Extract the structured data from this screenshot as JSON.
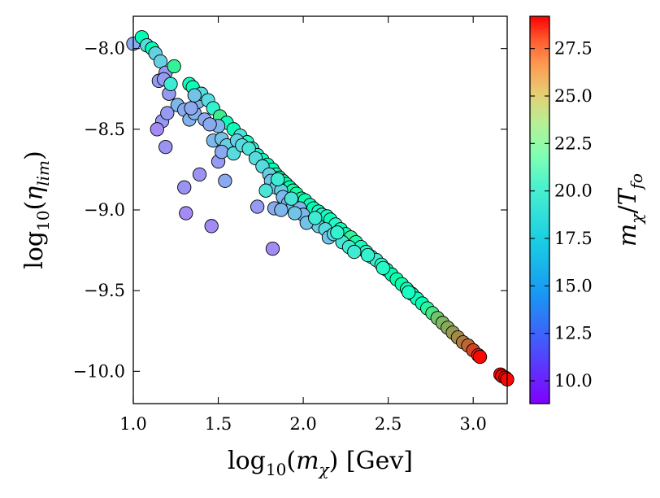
{
  "chart_data": {
    "type": "scatter",
    "title": "",
    "xlabel": {
      "pre": "log",
      "sub": "10",
      "open": "(",
      "var": "m",
      "varsub": "χ",
      "close": ")",
      "post": " [Gev]"
    },
    "ylabel": {
      "pre": "log",
      "sub": "10",
      "open": "(",
      "var": "η",
      "varsub": "lim",
      "close": ")"
    },
    "colorbar_label": {
      "var": "m",
      "varsub": "χ",
      "slash": "/",
      "var2": "T",
      "var2sub": "fo"
    },
    "xlim": [
      1.0,
      3.2
    ],
    "ylim": [
      -10.2,
      -7.8
    ],
    "xticks": [
      1.0,
      1.5,
      2.0,
      2.5,
      3.0
    ],
    "xtick_labels": [
      "1.0",
      "1.5",
      "2.0",
      "2.5",
      "3.0"
    ],
    "yticks": [
      -8.0,
      -8.5,
      -9.0,
      -9.5,
      -10.0
    ],
    "ytick_labels": [
      "−8.0",
      "−8.5",
      "−9.0",
      "−9.5",
      "−10.0"
    ],
    "clim": [
      8.8,
      29.2
    ],
    "cticks": [
      10.0,
      12.5,
      15.0,
      17.5,
      20.0,
      22.5,
      25.0,
      27.5
    ],
    "ctick_labels": [
      "10.0",
      "12.5",
      "15.0",
      "17.5",
      "20.0",
      "22.5",
      "25.0",
      "27.5"
    ],
    "colormap": "rainbow",
    "grid": false,
    "points": [
      [
        1.0,
        -7.97,
        13.5
      ],
      [
        1.05,
        -7.93,
        19.0
      ],
      [
        1.08,
        -7.98,
        15.5
      ],
      [
        1.11,
        -8.0,
        19.0
      ],
      [
        1.13,
        -8.03,
        15.0
      ],
      [
        1.16,
        -8.08,
        15.0
      ],
      [
        1.19,
        -8.15,
        13.0
      ],
      [
        1.24,
        -8.11,
        21.0
      ],
      [
        1.15,
        -8.2,
        13.0
      ],
      [
        1.18,
        -8.19,
        13.0
      ],
      [
        1.21,
        -8.28,
        13.0
      ],
      [
        1.22,
        -8.22,
        16.5
      ],
      [
        1.26,
        -8.35,
        14.0
      ],
      [
        1.17,
        -8.45,
        13.0
      ],
      [
        1.14,
        -8.5,
        12.5
      ],
      [
        1.2,
        -8.4,
        13.0
      ],
      [
        1.19,
        -8.61,
        12.8
      ],
      [
        1.3,
        -8.38,
        13.5
      ],
      [
        1.33,
        -8.44,
        13.8
      ],
      [
        1.36,
        -8.4,
        13.8
      ],
      [
        1.38,
        -8.33,
        13.8
      ],
      [
        1.33,
        -8.22,
        18.5
      ],
      [
        1.35,
        -8.24,
        18.5
      ],
      [
        1.4,
        -8.28,
        15.5
      ],
      [
        1.44,
        -8.32,
        15.5
      ],
      [
        1.47,
        -8.37,
        17.0
      ],
      [
        1.51,
        -8.42,
        21.5
      ],
      [
        1.55,
        -8.46,
        18.5
      ],
      [
        1.59,
        -8.5,
        18.5
      ],
      [
        1.63,
        -8.54,
        16.0
      ],
      [
        1.67,
        -8.58,
        17.5
      ],
      [
        1.7,
        -8.62,
        17.0
      ],
      [
        1.73,
        -8.66,
        17.5
      ],
      [
        1.76,
        -8.69,
        18.5
      ],
      [
        1.79,
        -8.72,
        19.0
      ],
      [
        1.82,
        -8.75,
        19.0
      ],
      [
        1.84,
        -8.78,
        20.0
      ],
      [
        1.86,
        -8.8,
        20.0
      ],
      [
        1.88,
        -8.82,
        19.0
      ],
      [
        1.9,
        -8.84,
        19.5
      ],
      [
        1.92,
        -8.86,
        19.0
      ],
      [
        1.94,
        -8.88,
        20.0
      ],
      [
        1.96,
        -8.9,
        20.0
      ],
      [
        1.99,
        -8.93,
        20.0
      ],
      [
        2.01,
        -8.94,
        19.5
      ],
      [
        2.04,
        -8.97,
        18.5
      ],
      [
        2.06,
        -8.99,
        19.0
      ],
      [
        2.09,
        -9.01,
        18.0
      ],
      [
        2.11,
        -9.03,
        17.5
      ],
      [
        2.14,
        -9.04,
        18.0
      ],
      [
        2.16,
        -9.06,
        18.5
      ],
      [
        2.19,
        -9.09,
        17.5
      ],
      [
        2.22,
        -9.12,
        18.5
      ],
      [
        2.25,
        -9.15,
        19.5
      ],
      [
        2.28,
        -9.17,
        21.0
      ],
      [
        2.31,
        -9.2,
        20.0
      ],
      [
        2.34,
        -9.23,
        18.0
      ],
      [
        2.37,
        -9.26,
        17.5
      ],
      [
        2.4,
        -9.29,
        16.5
      ],
      [
        2.43,
        -9.31,
        16.5
      ],
      [
        2.46,
        -9.34,
        17.5
      ],
      [
        2.49,
        -9.37,
        18.5
      ],
      [
        2.52,
        -9.4,
        19.0
      ],
      [
        2.55,
        -9.43,
        19.5
      ],
      [
        2.58,
        -9.46,
        19.5
      ],
      [
        2.61,
        -9.49,
        18.5
      ],
      [
        2.64,
        -9.52,
        18.0
      ],
      [
        2.67,
        -9.55,
        18.5
      ],
      [
        2.7,
        -9.58,
        19.0
      ],
      [
        2.73,
        -9.61,
        20.5
      ],
      [
        2.76,
        -9.64,
        22.0
      ],
      [
        2.79,
        -9.67,
        23.5
      ],
      [
        2.82,
        -9.7,
        24.0
      ],
      [
        2.85,
        -9.73,
        24.5
      ],
      [
        2.88,
        -9.76,
        25.0
      ],
      [
        2.91,
        -9.79,
        25.5
      ],
      [
        2.94,
        -9.82,
        26.0
      ],
      [
        2.97,
        -9.84,
        26.5
      ],
      [
        3.0,
        -9.87,
        27.5
      ],
      [
        3.03,
        -9.9,
        28.5
      ],
      [
        3.04,
        -9.91,
        29.0
      ],
      [
        3.16,
        -10.02,
        29.0
      ],
      [
        3.17,
        -10.03,
        29.0
      ],
      [
        3.19,
        -10.04,
        29.0
      ],
      [
        3.2,
        -10.05,
        29.0
      ],
      [
        1.42,
        -8.44,
        13.5
      ],
      [
        1.47,
        -8.57,
        14.0
      ],
      [
        1.5,
        -8.48,
        14.0
      ],
      [
        1.52,
        -8.56,
        14.5
      ],
      [
        1.55,
        -8.6,
        15.0
      ],
      [
        1.5,
        -8.7,
        13.0
      ],
      [
        1.52,
        -8.64,
        13.5
      ],
      [
        1.54,
        -8.82,
        13.5
      ],
      [
        1.61,
        -8.57,
        15.0
      ],
      [
        1.59,
        -8.65,
        15.5
      ],
      [
        1.64,
        -8.6,
        15.5
      ],
      [
        1.68,
        -8.62,
        16.0
      ],
      [
        1.72,
        -8.68,
        15.5
      ],
      [
        1.76,
        -8.73,
        15.5
      ],
      [
        1.8,
        -8.78,
        15.0
      ],
      [
        1.81,
        -8.82,
        14.5
      ],
      [
        1.84,
        -8.86,
        14.5
      ],
      [
        1.87,
        -8.88,
        15.0
      ],
      [
        1.88,
        -8.92,
        14.0
      ],
      [
        1.91,
        -8.96,
        14.0
      ],
      [
        1.94,
        -8.98,
        14.5
      ],
      [
        1.98,
        -8.99,
        14.0
      ],
      [
        2.0,
        -9.03,
        14.0
      ],
      [
        2.05,
        -9.07,
        14.5
      ],
      [
        2.09,
        -9.1,
        15.0
      ],
      [
        2.13,
        -9.12,
        15.5
      ],
      [
        2.15,
        -9.17,
        14.5
      ],
      [
        2.18,
        -9.15,
        15.5
      ],
      [
        2.23,
        -9.2,
        16.0
      ],
      [
        2.27,
        -9.23,
        16.5
      ],
      [
        2.3,
        -9.26,
        16.5
      ],
      [
        1.83,
        -8.99,
        13.5
      ],
      [
        1.87,
        -9.0,
        14.0
      ],
      [
        1.95,
        -9.02,
        14.5
      ],
      [
        2.02,
        -9.08,
        14.5
      ],
      [
        1.73,
        -8.98,
        13.0
      ],
      [
        1.82,
        -9.24,
        12.5
      ],
      [
        1.46,
        -9.1,
        12.5
      ],
      [
        1.31,
        -9.02,
        12.5
      ],
      [
        1.3,
        -8.86,
        12.8
      ],
      [
        1.39,
        -8.78,
        12.8
      ],
      [
        1.45,
        -8.47,
        13.5
      ],
      [
        1.34,
        -8.37,
        13.5
      ],
      [
        1.36,
        -8.29,
        14.5
      ],
      [
        1.78,
        -8.88,
        16.0
      ],
      [
        1.85,
        -8.81,
        16.5
      ],
      [
        1.93,
        -8.93,
        16.0
      ],
      [
        2.07,
        -9.05,
        16.5
      ],
      [
        2.2,
        -9.14,
        17.0
      ],
      [
        2.38,
        -9.28,
        17.0
      ],
      [
        2.47,
        -9.36,
        17.5
      ],
      [
        2.62,
        -9.51,
        18.0
      ]
    ]
  }
}
